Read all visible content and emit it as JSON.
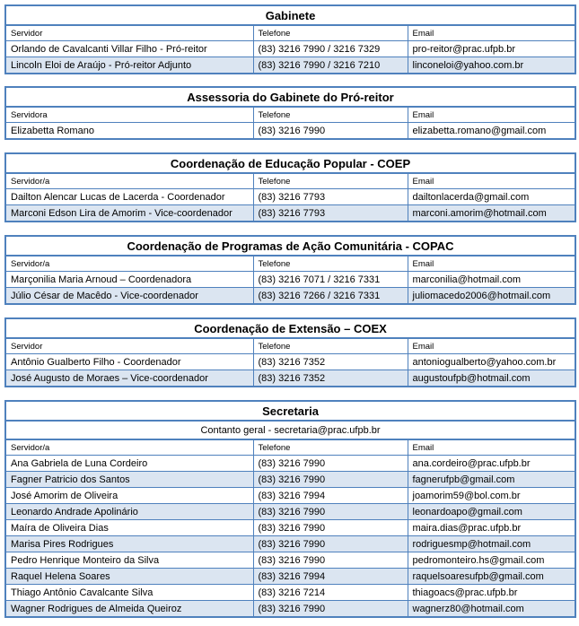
{
  "sections": [
    {
      "title": "Gabinete",
      "headers": [
        "Servidor",
        "Telefone",
        "Email"
      ],
      "rows": [
        [
          "Orlando de Cavalcanti Villar Filho - Pró-reitor",
          "(83) 3216 7990 / 3216 7329",
          "pro-reitor@prac.ufpb.br"
        ],
        [
          "Lincoln Eloi de Araújo - Pró-reitor Adjunto",
          "(83) 3216 7990 / 3216 7210",
          "linconeloi@yahoo.com.br"
        ]
      ]
    },
    {
      "title": "Assessoria do Gabinete do Pró-reitor",
      "headers": [
        "Servidora",
        "Telefone",
        "Email"
      ],
      "rows": [
        [
          "Elizabetta Romano",
          "(83) 3216 7990",
          "elizabetta.romano@gmail.com"
        ]
      ]
    },
    {
      "title": "Coordenação de Educação Popular - COEP",
      "headers": [
        "Servidor/a",
        "Telefone",
        "Email"
      ],
      "rows": [
        [
          "Dailton Alencar Lucas de Lacerda - Coordenador",
          "(83) 3216 7793",
          "dailtonlacerda@gmail.com"
        ],
        [
          "Marconi Edson Lira de Amorim - Vice-coordenador",
          "(83) 3216 7793",
          "marconi.amorim@hotmail.com"
        ]
      ]
    },
    {
      "title": "Coordenação de Programas de Ação Comunitária - COPAC",
      "headers": [
        "Servidor/a",
        "Telefone",
        "Email"
      ],
      "rows": [
        [
          "Marçonilia Maria Arnoud – Coordenadora",
          "(83) 3216 7071 / 3216 7331",
          "marconilia@hotmail.com"
        ],
        [
          "Júlio César de Macêdo - Vice-coordenador",
          "(83) 3216 7266 / 3216 7331",
          "juliomacedo2006@hotmail.com"
        ]
      ]
    },
    {
      "title": "Coordenação de Extensão – COEX",
      "headers": [
        "Servidor",
        "Telefone",
        "Email"
      ],
      "rows": [
        [
          "Antônio Gualberto Filho - Coordenador",
          "(83) 3216 7352",
          "antoniogualberto@yahoo.com.br"
        ],
        [
          "José Augusto de Moraes – Vice-coordenador",
          "(83) 3216 7352",
          "augustoufpb@hotmail.com"
        ]
      ]
    },
    {
      "title": "Secretaria",
      "subtitle": "Contanto geral -  secretaria@prac.ufpb.br",
      "headers": [
        "Servidor/a",
        "Telefone",
        "Email"
      ],
      "rows": [
        [
          "Ana Gabriela de Luna Cordeiro",
          "(83) 3216 7990",
          "ana.cordeiro@prac.ufpb.br"
        ],
        [
          "Fagner Patricio dos Santos",
          "(83) 3216 7990",
          "fagnerufpb@gmail.com"
        ],
        [
          "José Amorim de Oliveira",
          "(83) 3216 7994",
          "joamorim59@bol.com.br"
        ],
        [
          "Leonardo Andrade Apolinário",
          "(83) 3216 7990",
          "leonardoapo@gmail.com"
        ],
        [
          "Maíra de Oliveira Dias",
          "(83) 3216 7990",
          "maira.dias@prac.ufpb.br"
        ],
        [
          "Marisa Pires Rodrigues",
          "(83) 3216 7990",
          "rodriguesmp@hotmail.com"
        ],
        [
          "Pedro Henrique Monteiro da Silva",
          "(83) 3216 7990",
          "pedromonteiro.hs@gmail.com"
        ],
        [
          "Raquel Helena Soares",
          "(83) 3216 7994",
          "raquelsoaresufpb@gmail.com"
        ],
        [
          "Thiago Antônio Cavalcante Silva",
          "(83) 3216 7214",
          "thiagoacs@prac.ufpb.br"
        ],
        [
          "Wagner Rodrigues de Almeida Queiroz",
          "(83) 3216 7990",
          "wagnerz80@hotmail.com"
        ]
      ]
    }
  ]
}
